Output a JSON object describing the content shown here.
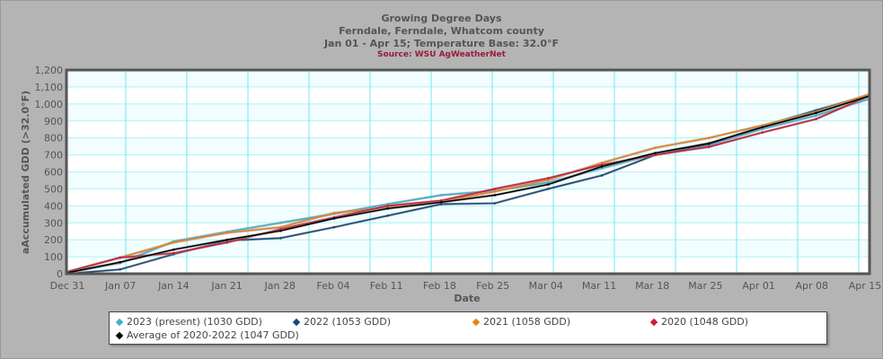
{
  "chart_data": {
    "type": "line",
    "title": "Growing Degree Days",
    "subtitle": [
      "Ferndale, Ferndale, Whatcom county",
      "Jan 01 - Apr 15; Temperature Base: 32.0°F"
    ],
    "source": "Source:  WSU AgWeatherNet",
    "xlabel": "Date",
    "ylabel": "aAccumulated GDD (>32.0°F)",
    "ylim": [
      0,
      1200
    ],
    "yticks": [
      "0",
      "100",
      "200",
      "300",
      "400",
      "500",
      "600",
      "700",
      "800",
      "900",
      "1,000",
      "1,100",
      "1,200"
    ],
    "xticks": [
      "Dec 31",
      "Jan 07",
      "Jan 14",
      "Jan 21",
      "Jan 28",
      "Feb 04",
      "Feb 11",
      "Feb 18",
      "Feb 25",
      "Mar 04",
      "Mar 11",
      "Mar 18",
      "Mar 25",
      "Apr 01",
      "Apr 08",
      "Apr 15"
    ],
    "grid": true,
    "legend_position": "bottom",
    "x": [
      "Dec 31",
      "Jan 07",
      "Jan 14",
      "Jan 21",
      "Jan 28",
      "Feb 04",
      "Feb 11",
      "Feb 18",
      "Feb 25",
      "Mar 04",
      "Mar 11",
      "Mar 18",
      "Mar 25",
      "Apr 01",
      "Apr 08",
      "Apr 15"
    ],
    "series": [
      {
        "name": "2023 (present) (1030 GDD)",
        "color": "#3fb0cc",
        "values": [
          5,
          63,
          190,
          247,
          300,
          353,
          410,
          463,
          489,
          537,
          621,
          705,
          758,
          853,
          932,
          1030
        ]
      },
      {
        "name": "2022 (1053 GDD)",
        "color": "#1a4a78",
        "values": [
          0,
          25,
          115,
          195,
          210,
          274,
          342,
          410,
          415,
          500,
          579,
          700,
          763,
          868,
          963,
          1053
        ]
      },
      {
        "name": "2021 (1058 GDD)",
        "color": "#e8821e",
        "values": [
          10,
          95,
          184,
          241,
          274,
          358,
          390,
          425,
          484,
          553,
          653,
          742,
          800,
          874,
          953,
          1058
        ]
      },
      {
        "name": "2020 (1048 GDD)",
        "color": "#cc1a3a",
        "values": [
          10,
          95,
          121,
          184,
          263,
          332,
          400,
          431,
          500,
          563,
          642,
          700,
          747,
          832,
          911,
          1048
        ]
      },
      {
        "name": "Average of 2020-2022 (1047 GDD)",
        "color": "#000000",
        "values": [
          5,
          68,
          142,
          200,
          253,
          326,
          384,
          421,
          463,
          526,
          632,
          711,
          768,
          863,
          947,
          1047
        ]
      }
    ]
  }
}
